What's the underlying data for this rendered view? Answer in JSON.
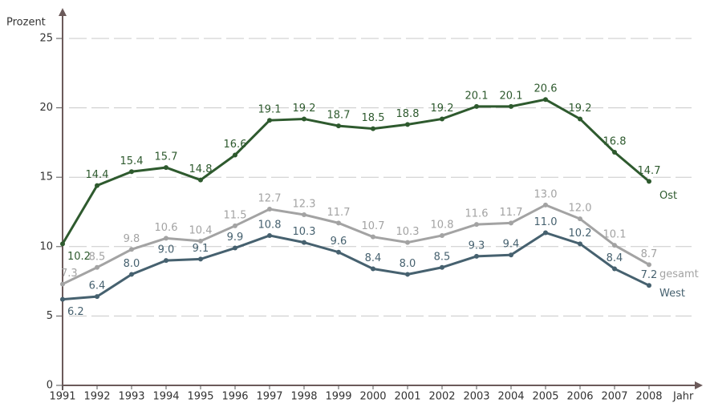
{
  "chart_data": {
    "type": "line",
    "ylabel": "Prozent",
    "xlabel": "Jahr",
    "categories": [
      "1991",
      "1992",
      "1993",
      "1994",
      "1995",
      "1996",
      "1997",
      "1998",
      "1999",
      "2000",
      "2001",
      "2002",
      "2003",
      "2004",
      "2005",
      "2006",
      "2007",
      "2008"
    ],
    "series": [
      {
        "name": "Ost",
        "color": "#2e5a2e",
        "values": [
          10.2,
          14.4,
          15.4,
          15.7,
          14.8,
          16.6,
          19.1,
          19.2,
          18.7,
          18.5,
          18.8,
          19.2,
          20.1,
          20.1,
          20.6,
          19.2,
          16.8,
          14.7
        ],
        "value_labels": [
          "10.2",
          "14.4",
          "15.4",
          "15.7",
          "14.8",
          "16.6",
          "19.1",
          "19.2",
          "18.7",
          "18.5",
          "18.8",
          "19.2",
          "20.1",
          "20.1",
          "20.6",
          "19.2",
          "16.8",
          "14.7"
        ]
      },
      {
        "name": "gesamt",
        "color": "#a3a3a3",
        "values": [
          7.3,
          8.5,
          9.8,
          10.6,
          10.4,
          11.5,
          12.7,
          12.3,
          11.7,
          10.7,
          10.3,
          10.8,
          11.6,
          11.7,
          13.0,
          12.0,
          10.1,
          8.7
        ],
        "value_labels": [
          "7.3",
          "8.5",
          "9.8",
          "10.6",
          "10.4",
          "11.5",
          "12.7",
          "12.3",
          "11.7",
          "10.7",
          "10.3",
          "10.8",
          "11.6",
          "11.7",
          "13.0",
          "12.0",
          "10.1",
          "8.7"
        ]
      },
      {
        "name": "West",
        "color": "#46616f",
        "values": [
          6.2,
          6.4,
          8.0,
          9.0,
          9.1,
          9.9,
          10.8,
          10.3,
          9.6,
          8.4,
          8.0,
          8.5,
          9.3,
          9.4,
          11.0,
          10.2,
          8.4,
          7.2
        ],
        "value_labels": [
          "6.2",
          "6.4",
          "8.0",
          "9.0",
          "9.1",
          "9.9",
          "10.8",
          "10.3",
          "9.6",
          "8.4",
          "8.0",
          "8.5",
          "9.3",
          "9.4",
          "11.0",
          "10.2",
          "8.4",
          "7.2"
        ]
      }
    ],
    "ylim": [
      0,
      25
    ],
    "yticks": [
      0,
      5,
      10,
      15,
      20,
      25
    ],
    "grid": true
  }
}
